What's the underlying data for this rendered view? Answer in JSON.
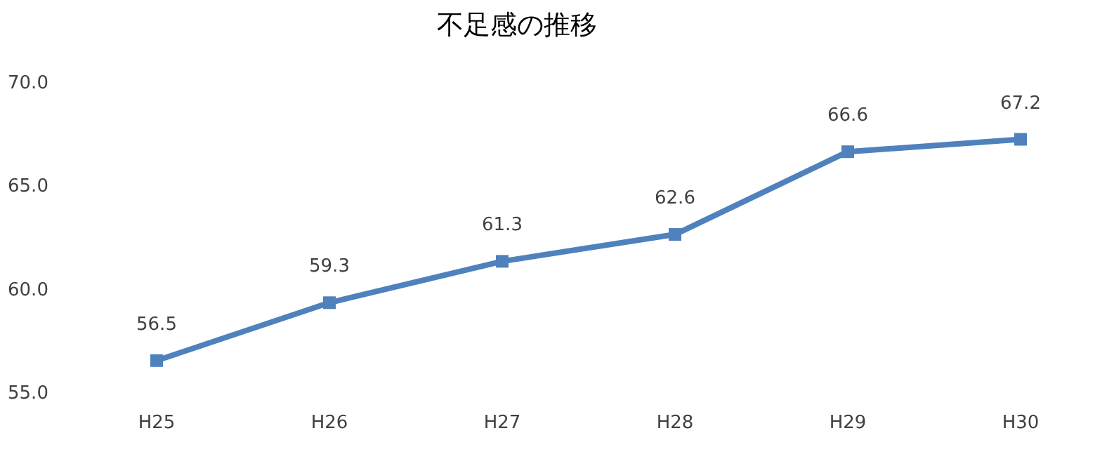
{
  "chart_data": {
    "type": "line",
    "title": "不足感の推移",
    "categories": [
      "H25",
      "H26",
      "H27",
      "H28",
      "H29",
      "H30"
    ],
    "series": [
      {
        "color": "#4f81bd",
        "values": [
          56.5,
          59.3,
          61.3,
          62.6,
          66.6,
          67.2
        ]
      }
    ],
    "ylim": [
      55,
      70
    ],
    "yticks": [
      {
        "value": 55,
        "label": "55.0"
      },
      {
        "value": 60,
        "label": "60.0"
      },
      {
        "value": 65,
        "label": "65.0"
      },
      {
        "value": 70,
        "label": "70.0"
      }
    ],
    "marker": "square",
    "line_style": "solid",
    "data_labels": true,
    "grid": false
  }
}
